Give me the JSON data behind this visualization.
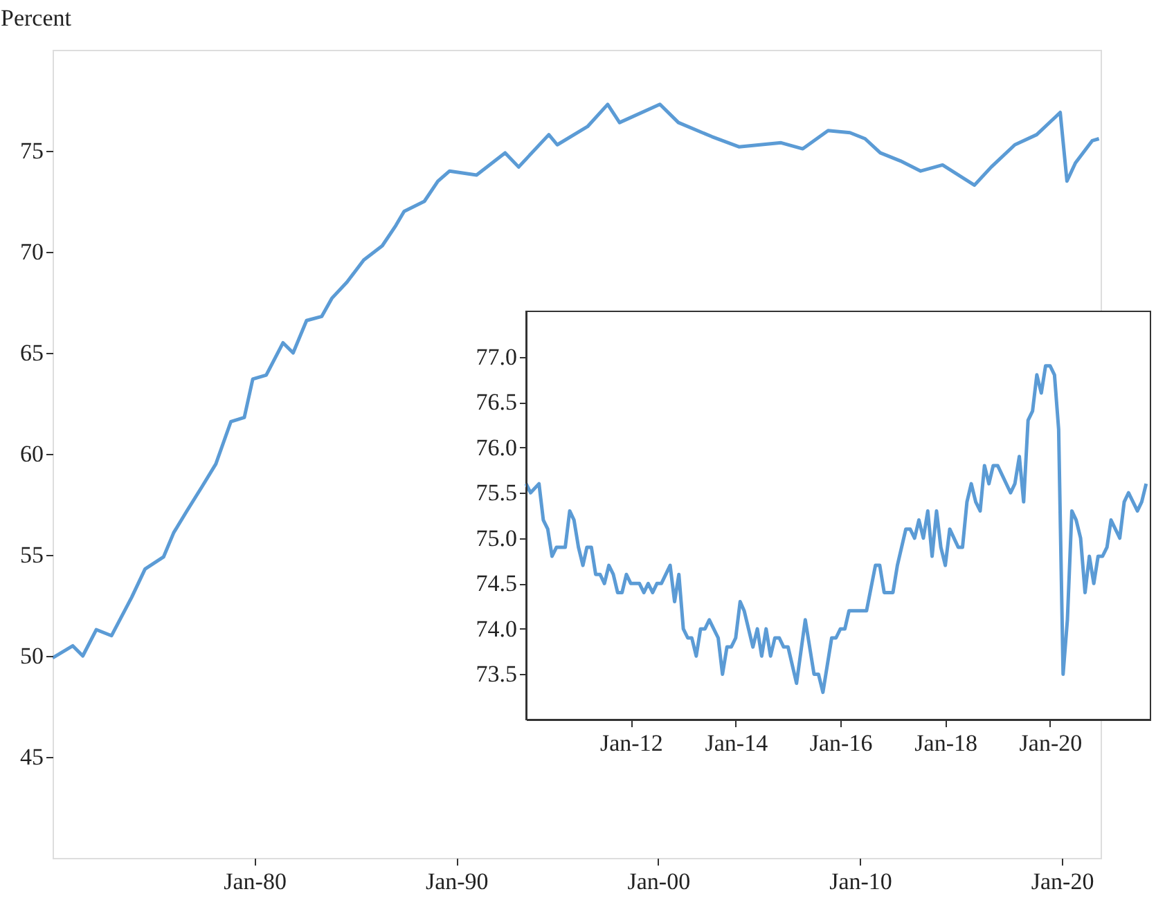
{
  "chart_data": [
    {
      "type": "line",
      "ylabel": "Percent",
      "xlim": [
        "1970-01",
        "2021-12"
      ],
      "ylim": [
        40,
        80
      ],
      "yticks": [
        45,
        50,
        55,
        60,
        65,
        70,
        75
      ],
      "xticks": [
        {
          "value": "1980-01",
          "label": "Jan-80"
        },
        {
          "value": "1990-01",
          "label": "Jan-90"
        },
        {
          "value": "2000-01",
          "label": "Jan-00"
        },
        {
          "value": "2010-01",
          "label": "Jan-10"
        },
        {
          "value": "2020-01",
          "label": "Jan-20"
        }
      ],
      "grid": false,
      "legend": false,
      "marker": "none",
      "line_style": "solid",
      "x": [
        "1970-01",
        "1971-01",
        "1971-07",
        "1972-03",
        "1972-12",
        "1973-12",
        "1974-08",
        "1975-07",
        "1976-01",
        "1976-09",
        "1977-06",
        "1978-02",
        "1978-11",
        "1979-07",
        "1979-12",
        "1980-08",
        "1981-06",
        "1981-12",
        "1982-08",
        "1983-05",
        "1983-11",
        "1984-08",
        "1985-06",
        "1986-05",
        "1987-01",
        "1987-06",
        "1988-06",
        "1989-02",
        "1989-09",
        "1991-01",
        "1992-06",
        "1993-02",
        "1994-08",
        "1995-01",
        "1996-07",
        "1997-07",
        "1998-02",
        "2000-02",
        "2001-01",
        "2002-09",
        "2004-01",
        "2006-02",
        "2007-03",
        "2008-06",
        "2009-07",
        "2010-04",
        "2011-01",
        "2012-01",
        "2013-01",
        "2014-02",
        "2015-09",
        "2016-07",
        "2017-09",
        "2018-10",
        "2019-12",
        "2020-04",
        "2020-09",
        "2021-07",
        "2021-11"
      ],
      "series": [
        {
          "color": "#5b9bd5",
          "values": [
            49.9,
            50.5,
            50.0,
            51.3,
            51.0,
            52.9,
            54.3,
            54.9,
            56.1,
            57.2,
            58.4,
            59.5,
            61.6,
            61.8,
            63.7,
            63.9,
            65.5,
            65.0,
            66.6,
            66.8,
            67.7,
            68.5,
            69.6,
            70.3,
            71.3,
            72.0,
            72.5,
            73.5,
            74.0,
            73.8,
            74.9,
            74.2,
            75.8,
            75.3,
            76.2,
            77.3,
            76.4,
            77.3,
            76.4,
            75.7,
            75.2,
            75.4,
            75.1,
            76.0,
            75.9,
            75.6,
            74.9,
            74.5,
            74.0,
            74.3,
            73.3,
            74.2,
            75.3,
            75.8,
            76.9,
            73.5,
            74.4,
            75.5,
            75.6
          ]
        }
      ]
    },
    {
      "type": "line",
      "xlim": [
        "2010-01",
        "2021-12"
      ],
      "ylim": [
        73,
        77.5
      ],
      "yticks": [
        {
          "value": 73.5,
          "label": "73.5"
        },
        {
          "value": 74,
          "label": "74.0"
        },
        {
          "value": 74.5,
          "label": "74.5"
        },
        {
          "value": 75,
          "label": "75.0"
        },
        {
          "value": 75.5,
          "label": "75.5"
        },
        {
          "value": 76,
          "label": "76.0"
        },
        {
          "value": 76.5,
          "label": "76.5"
        },
        {
          "value": 77,
          "label": "77.0"
        }
      ],
      "xticks": [
        {
          "value": "2012-01",
          "label": "Jan-12"
        },
        {
          "value": "2014-01",
          "label": "Jan-14"
        },
        {
          "value": "2016-01",
          "label": "Jan-16"
        },
        {
          "value": "2018-01",
          "label": "Jan-18"
        },
        {
          "value": "2020-01",
          "label": "Jan-20"
        }
      ],
      "grid": false,
      "legend": false,
      "marker": "none",
      "line_style": "solid",
      "x": [
        "2010-01",
        "2010-02",
        "2010-04",
        "2010-05",
        "2010-06",
        "2010-07",
        "2010-08",
        "2010-10",
        "2010-11",
        "2010-12",
        "2011-01",
        "2011-02",
        "2011-03",
        "2011-04",
        "2011-05",
        "2011-06",
        "2011-07",
        "2011-08",
        "2011-09",
        "2011-10",
        "2011-11",
        "2011-12",
        "2012-01",
        "2012-03",
        "2012-04",
        "2012-05",
        "2012-06",
        "2012-07",
        "2012-08",
        "2012-10",
        "2012-11",
        "2012-12",
        "2013-01",
        "2013-02",
        "2013-03",
        "2013-04",
        "2013-05",
        "2013-06",
        "2013-07",
        "2013-09",
        "2013-10",
        "2013-11",
        "2013-12",
        "2014-01",
        "2014-02",
        "2014-03",
        "2014-05",
        "2014-06",
        "2014-07",
        "2014-08",
        "2014-09",
        "2014-10",
        "2014-11",
        "2014-12",
        "2015-01",
        "2015-03",
        "2015-05",
        "2015-07",
        "2015-08",
        "2015-09",
        "2015-11",
        "2015-12",
        "2016-01",
        "2016-02",
        "2016-03",
        "2016-07",
        "2016-09",
        "2016-10",
        "2016-11",
        "2017-01",
        "2017-02",
        "2017-04",
        "2017-05",
        "2017-06",
        "2017-07",
        "2017-08",
        "2017-09",
        "2017-10",
        "2017-11",
        "2017-12",
        "2018-01",
        "2018-02",
        "2018-04",
        "2018-05",
        "2018-06",
        "2018-07",
        "2018-08",
        "2018-09",
        "2018-10",
        "2018-11",
        "2018-12",
        "2019-01",
        "2019-04",
        "2019-05",
        "2019-06",
        "2019-07",
        "2019-08",
        "2019-09",
        "2019-10",
        "2019-11",
        "2019-12",
        "2020-01",
        "2020-02",
        "2020-03",
        "2020-04",
        "2020-05",
        "2020-06",
        "2020-07",
        "2020-08",
        "2020-09",
        "2020-10",
        "2020-11",
        "2020-12",
        "2021-01",
        "2021-02",
        "2021-03",
        "2021-05",
        "2021-06",
        "2021-07",
        "2021-09",
        "2021-10",
        "2021-11"
      ],
      "series": [
        {
          "color": "#5b9bd5",
          "values": [
            75.6,
            75.5,
            75.6,
            75.2,
            75.1,
            74.8,
            74.9,
            74.9,
            75.3,
            75.2,
            74.9,
            74.7,
            74.9,
            74.9,
            74.6,
            74.6,
            74.5,
            74.7,
            74.6,
            74.4,
            74.4,
            74.6,
            74.5,
            74.5,
            74.4,
            74.5,
            74.4,
            74.5,
            74.5,
            74.7,
            74.3,
            74.6,
            74.0,
            73.9,
            73.9,
            73.7,
            74.0,
            74.0,
            74.1,
            73.9,
            73.5,
            73.8,
            73.8,
            73.9,
            74.3,
            74.2,
            73.8,
            74.0,
            73.7,
            74.0,
            73.7,
            73.9,
            73.9,
            73.8,
            73.8,
            73.4,
            74.1,
            73.5,
            73.5,
            73.3,
            73.9,
            73.9,
            74.0,
            74.0,
            74.2,
            74.2,
            74.7,
            74.7,
            74.4,
            74.4,
            74.7,
            75.1,
            75.1,
            75.0,
            75.2,
            75.0,
            75.3,
            74.8,
            75.3,
            74.9,
            74.7,
            75.1,
            74.9,
            74.9,
            75.4,
            75.6,
            75.4,
            75.3,
            75.8,
            75.6,
            75.8,
            75.8,
            75.5,
            75.6,
            75.9,
            75.4,
            76.3,
            76.4,
            76.8,
            76.6,
            76.9,
            76.9,
            76.8,
            76.2,
            73.5,
            74.1,
            75.3,
            75.2,
            75.0,
            74.4,
            74.8,
            74.5,
            74.8,
            74.8,
            74.9,
            75.2,
            75.0,
            75.4,
            75.5,
            75.3,
            75.4,
            75.6
          ]
        }
      ]
    }
  ]
}
